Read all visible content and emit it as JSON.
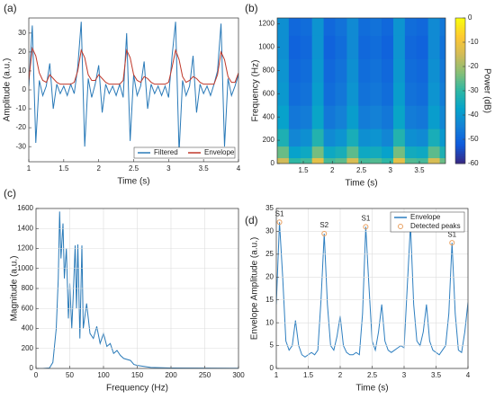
{
  "chart_data": [
    {
      "type": "line",
      "panel_label": "(a)",
      "xlabel": "Time (s)",
      "ylabel": "Amplitude (a.u.)",
      "xlim": [
        1,
        4
      ],
      "xticks": [
        1,
        1.5,
        2,
        2.5,
        3,
        3.5,
        4
      ],
      "ylim": [
        -38,
        38
      ],
      "yticks": [
        -30,
        -20,
        -10,
        0,
        10,
        20,
        30
      ],
      "grid": false,
      "legend": "lower right",
      "x": [
        1,
        1.05,
        1.1,
        1.15,
        1.2,
        1.25,
        1.3,
        1.35,
        1.4,
        1.45,
        1.5,
        1.55,
        1.6,
        1.65,
        1.7,
        1.75,
        1.8,
        1.85,
        1.9,
        1.95,
        2,
        2.05,
        2.1,
        2.15,
        2.2,
        2.25,
        2.3,
        2.35,
        2.4,
        2.45,
        2.5,
        2.55,
        2.6,
        2.65,
        2.7,
        2.75,
        2.8,
        2.85,
        2.9,
        2.95,
        3,
        3.05,
        3.1,
        3.15,
        3.2,
        3.25,
        3.3,
        3.35,
        3.4,
        3.45,
        3.5,
        3.55,
        3.6,
        3.65,
        3.7,
        3.75,
        3.8,
        3.85,
        3.9,
        3.95,
        4
      ],
      "series": [
        {
          "name": "Filtered",
          "color": "#2a7ab8",
          "values": [
            2,
            34,
            -28,
            5,
            -3,
            2,
            14,
            -10,
            3,
            -2,
            2,
            -3,
            3,
            -2,
            12,
            36,
            -30,
            6,
            -4,
            3,
            13,
            -12,
            3,
            -2,
            2,
            -3,
            3,
            -4,
            30,
            -27,
            8,
            -3,
            2,
            15,
            -10,
            3,
            -2,
            2,
            -3,
            2,
            -4,
            18,
            36,
            -33,
            5,
            -3,
            2,
            18,
            -12,
            3,
            -2,
            2,
            -3,
            3,
            10,
            35,
            -30,
            6,
            -3,
            2,
            8
          ]
        },
        {
          "name": "Envelope",
          "color": "#c0392b",
          "values": [
            5,
            22,
            18,
            9,
            5,
            4,
            8,
            6,
            4,
            3,
            3,
            3,
            3,
            4,
            10,
            21,
            17,
            8,
            5,
            5,
            8,
            6,
            4,
            3,
            3,
            3,
            3,
            5,
            21,
            17,
            8,
            5,
            4,
            7,
            6,
            4,
            3,
            3,
            3,
            3,
            4,
            12,
            21,
            16,
            7,
            4,
            5,
            7,
            6,
            4,
            3,
            3,
            3,
            3,
            8,
            20,
            16,
            7,
            4,
            4,
            9
          ]
        }
      ]
    },
    {
      "type": "heatmap",
      "panel_label": "(b)",
      "xlabel": "Time (s)",
      "ylabel": "Frequency (Hz)",
      "zlabel": "Power (dB)",
      "xlim": [
        1.05,
        3.95
      ],
      "xticks": [
        1.5,
        2,
        2.5,
        3,
        3.5
      ],
      "ylim": [
        0,
        1250
      ],
      "yticks": [
        0,
        200,
        400,
        600,
        800,
        1000,
        1200
      ],
      "zlim": [
        -60,
        0
      ],
      "zticks": [
        0,
        -10,
        -20,
        -30,
        -40,
        -50,
        -60
      ],
      "colormap": [
        "#352a87",
        "#0f5cdd",
        "#1481d6",
        "#06a4ca",
        "#2eb7a4",
        "#87bf77",
        "#d1bb59",
        "#fec832",
        "#f9fb0e"
      ],
      "xbins": [
        1.05,
        1.25,
        1.45,
        1.65,
        1.85,
        2.05,
        2.25,
        2.45,
        2.65,
        2.85,
        3.05,
        3.25,
        3.45,
        3.65,
        3.85,
        3.95
      ],
      "ybins": [
        0,
        50,
        150,
        300,
        500,
        700,
        900,
        1100,
        1250
      ],
      "z": [
        [
          -15,
          -30,
          -28,
          -12,
          -28,
          -26,
          -14,
          -28,
          -27,
          -30,
          -12,
          -27,
          -28,
          -14,
          -25
        ],
        [
          -25,
          -38,
          -36,
          -24,
          -36,
          -34,
          -26,
          -36,
          -35,
          -38,
          -24,
          -35,
          -36,
          -26,
          -33
        ],
        [
          -33,
          -44,
          -42,
          -32,
          -43,
          -41,
          -34,
          -42,
          -41,
          -44,
          -32,
          -42,
          -43,
          -34,
          -40
        ],
        [
          -38,
          -47,
          -46,
          -37,
          -47,
          -45,
          -39,
          -46,
          -45,
          -47,
          -37,
          -46,
          -47,
          -39,
          -44
        ],
        [
          -40,
          -49,
          -48,
          -39,
          -49,
          -47,
          -41,
          -48,
          -47,
          -49,
          -39,
          -48,
          -49,
          -41,
          -46
        ],
        [
          -41,
          -50,
          -49,
          -40,
          -50,
          -48,
          -42,
          -49,
          -48,
          -50,
          -40,
          -49,
          -50,
          -42,
          -47
        ],
        [
          -42,
          -51,
          -50,
          -41,
          -51,
          -49,
          -43,
          -50,
          -49,
          -51,
          -41,
          -50,
          -51,
          -43,
          -48
        ],
        [
          -42,
          -50,
          -49,
          -41,
          -50,
          -48,
          -43,
          -49,
          -48,
          -50,
          -41,
          -49,
          -50,
          -43,
          -47
        ]
      ]
    },
    {
      "type": "line",
      "panel_label": "(c)",
      "xlabel": "Frequency (Hz)",
      "ylabel": "Magnitude (a.u.)",
      "xlim": [
        0,
        300
      ],
      "xticks": [
        0,
        50,
        100,
        150,
        200,
        250,
        300
      ],
      "ylim": [
        0,
        1600
      ],
      "yticks": [
        0,
        200,
        400,
        600,
        800,
        1000,
        1200,
        1400,
        1600
      ],
      "grid": true,
      "x": [
        0,
        10,
        20,
        25,
        30,
        33,
        35,
        37,
        40,
        42,
        45,
        48,
        50,
        53,
        55,
        58,
        60,
        62,
        65,
        68,
        70,
        75,
        80,
        85,
        90,
        95,
        100,
        105,
        110,
        115,
        120,
        125,
        130,
        140,
        145,
        150,
        160,
        170,
        200,
        250,
        300
      ],
      "series": [
        {
          "color": "#2a7ab8",
          "values": [
            0,
            0,
            5,
            60,
            400,
            900,
            1570,
            1100,
            1450,
            900,
            1200,
            500,
            850,
            400,
            700,
            1230,
            600,
            1240,
            300,
            1230,
            400,
            650,
            350,
            300,
            420,
            250,
            350,
            220,
            250,
            150,
            180,
            130,
            100,
            80,
            40,
            30,
            20,
            10,
            5,
            3,
            2
          ]
        }
      ]
    },
    {
      "type": "line",
      "panel_label": "(d)",
      "xlabel": "Time (s)",
      "ylabel": "Envelope Amplitude (a.u.)",
      "xlim": [
        1,
        4
      ],
      "xticks": [
        1,
        1.5,
        2,
        2.5,
        3,
        3.5,
        4
      ],
      "ylim": [
        0,
        35
      ],
      "yticks": [
        0,
        5,
        10,
        15,
        20,
        25,
        30,
        35
      ],
      "grid": true,
      "legend": "upper right",
      "x": [
        1,
        1.05,
        1.1,
        1.15,
        1.2,
        1.25,
        1.3,
        1.35,
        1.4,
        1.45,
        1.5,
        1.55,
        1.6,
        1.65,
        1.7,
        1.75,
        1.8,
        1.85,
        1.9,
        1.95,
        2,
        2.05,
        2.1,
        2.15,
        2.2,
        2.25,
        2.3,
        2.35,
        2.4,
        2.45,
        2.5,
        2.55,
        2.6,
        2.65,
        2.7,
        2.75,
        2.8,
        2.85,
        2.9,
        2.95,
        3,
        3.05,
        3.1,
        3.15,
        3.2,
        3.25,
        3.3,
        3.35,
        3.4,
        3.45,
        3.5,
        3.55,
        3.6,
        3.65,
        3.7,
        3.75,
        3.8,
        3.85,
        3.9,
        3.95,
        4
      ],
      "series": [
        {
          "name": "Envelope",
          "color": "#2e7fc0",
          "values": [
            14,
            32,
            20,
            6,
            4,
            5,
            10.5,
            5,
            3,
            2.5,
            3,
            3.5,
            3,
            4,
            15,
            29.5,
            14,
            5,
            4,
            7,
            11.5,
            5,
            3.5,
            3,
            3,
            3.5,
            3,
            12,
            31,
            18,
            6,
            4,
            8,
            14,
            6,
            4,
            3.5,
            4,
            4.5,
            5,
            4.5,
            18,
            31.5,
            14,
            6,
            5,
            8,
            14,
            6,
            4,
            3.5,
            3,
            4,
            5,
            12,
            27.5,
            12,
            4,
            3.5,
            8,
            14.5
          ]
        },
        {
          "name": "Detected peaks",
          "type": "scatter",
          "color": "#e8a060",
          "x": [
            1.05,
            1.75,
            2.4,
            3.1,
            3.75
          ],
          "values": [
            32,
            29.5,
            31,
            31.5,
            27.5
          ],
          "labels": [
            "S1",
            "S2",
            "S1",
            "S2",
            "S1"
          ]
        }
      ]
    }
  ]
}
